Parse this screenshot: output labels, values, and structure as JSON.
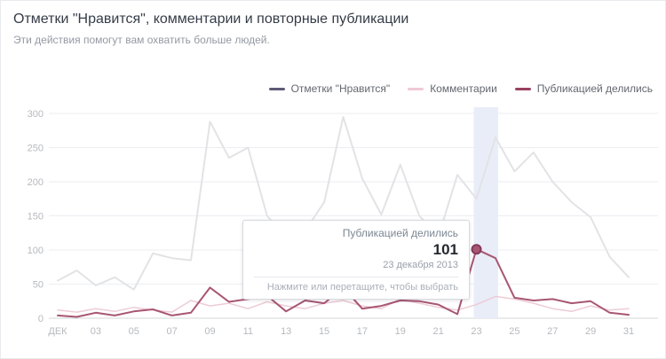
{
  "header": {
    "title": "Отметки \"Нравится\", комментарии и повторные публикации",
    "subtitle": "Эти действия помогут вам охватить больше людей."
  },
  "legend": [
    {
      "label": "Отметки \"Нравится\"",
      "color": "#5e5a78"
    },
    {
      "label": "Комментарии",
      "color": "#f0c9d3"
    },
    {
      "label": "Публикацией делились",
      "color": "#9a4160"
    }
  ],
  "tooltip": {
    "series": "Публикацией делились",
    "value": "101",
    "date": "23 декабря 2013",
    "hint": "Нажмите или перетащите, чтобы выбрать"
  },
  "chart_data": {
    "type": "line",
    "ylim": [
      0,
      300
    ],
    "y_ticks": [
      0,
      50,
      100,
      150,
      200,
      250,
      300
    ],
    "x_ticks": [
      {
        "day": 1,
        "label": "ДЕК"
      },
      {
        "day": 3,
        "label": "03"
      },
      {
        "day": 5,
        "label": "05"
      },
      {
        "day": 7,
        "label": "07"
      },
      {
        "day": 9,
        "label": "09"
      },
      {
        "day": 11,
        "label": "11"
      },
      {
        "day": 13,
        "label": "13"
      },
      {
        "day": 15,
        "label": "15"
      },
      {
        "day": 17,
        "label": "17"
      },
      {
        "day": 19,
        "label": "19"
      },
      {
        "day": 21,
        "label": "21"
      },
      {
        "day": 23,
        "label": "23"
      },
      {
        "day": 25,
        "label": "25"
      },
      {
        "day": 27,
        "label": "27"
      },
      {
        "day": 29,
        "label": "29"
      },
      {
        "day": 31,
        "label": "31"
      }
    ],
    "series": [
      {
        "name": "Отметки \"Нравится\"",
        "line_color": "#e2e3e5",
        "line_width": 2,
        "values": [
          55,
          70,
          48,
          60,
          42,
          95,
          88,
          85,
          288,
          235,
          250,
          150,
          118,
          128,
          170,
          295,
          205,
          152,
          225,
          150,
          120,
          210,
          175,
          265,
          215,
          243,
          200,
          170,
          148,
          90,
          60
        ]
      },
      {
        "name": "Комментарии",
        "line_color": "#edccd5",
        "line_width": 1.5,
        "values": [
          12,
          9,
          14,
          10,
          16,
          12,
          9,
          26,
          18,
          22,
          14,
          24,
          18,
          14,
          22,
          26,
          18,
          14,
          28,
          22,
          16,
          12,
          20,
          32,
          28,
          22,
          14,
          10,
          18,
          12,
          14
        ]
      },
      {
        "name": "Публикацией делились",
        "line_color": "#a85672",
        "line_width": 2,
        "values": [
          4,
          2,
          8,
          4,
          10,
          13,
          4,
          8,
          45,
          24,
          28,
          33,
          10,
          26,
          22,
          45,
          14,
          18,
          26,
          25,
          20,
          6,
          101,
          88,
          30,
          26,
          28,
          22,
          25,
          8,
          5
        ]
      }
    ],
    "highlight": {
      "day_start": 23,
      "day_end": 24
    },
    "marker": {
      "day": 23,
      "value": 101,
      "series": "Публикацией делились"
    }
  }
}
